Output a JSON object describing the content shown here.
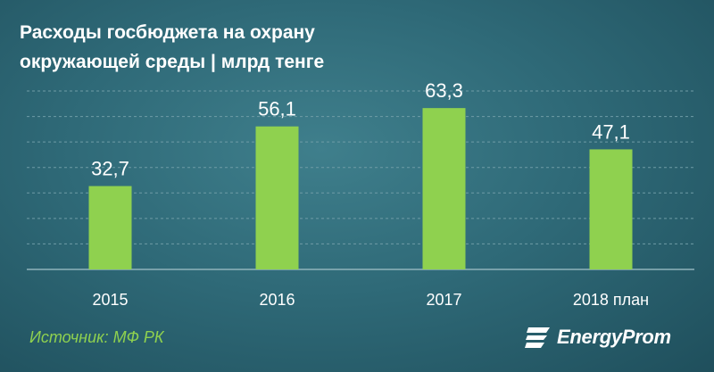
{
  "chart_data": {
    "type": "bar",
    "title": "Расходы  госбюджета на охрану\nокружающей  среды   | млрд тенге",
    "categories": [
      "2015",
      "2016",
      "2017",
      "2018 план"
    ],
    "values": [
      32.7,
      56.1,
      63.3,
      47.1
    ],
    "value_labels": [
      "32,7",
      "56,1",
      "63,3",
      "47,1"
    ],
    "ylim": [
      0,
      70
    ],
    "grid": "horizontal dashed",
    "bar_color": "#8fd14f"
  },
  "source": "Источник: МФ РК",
  "brand": {
    "name": "EnergyProm",
    "icon": "energyprom-logo-icon"
  },
  "colors": {
    "background": "#2f6a78",
    "bar": "#8fd14f",
    "text": "#ffffff",
    "source": "#8fd14f"
  }
}
